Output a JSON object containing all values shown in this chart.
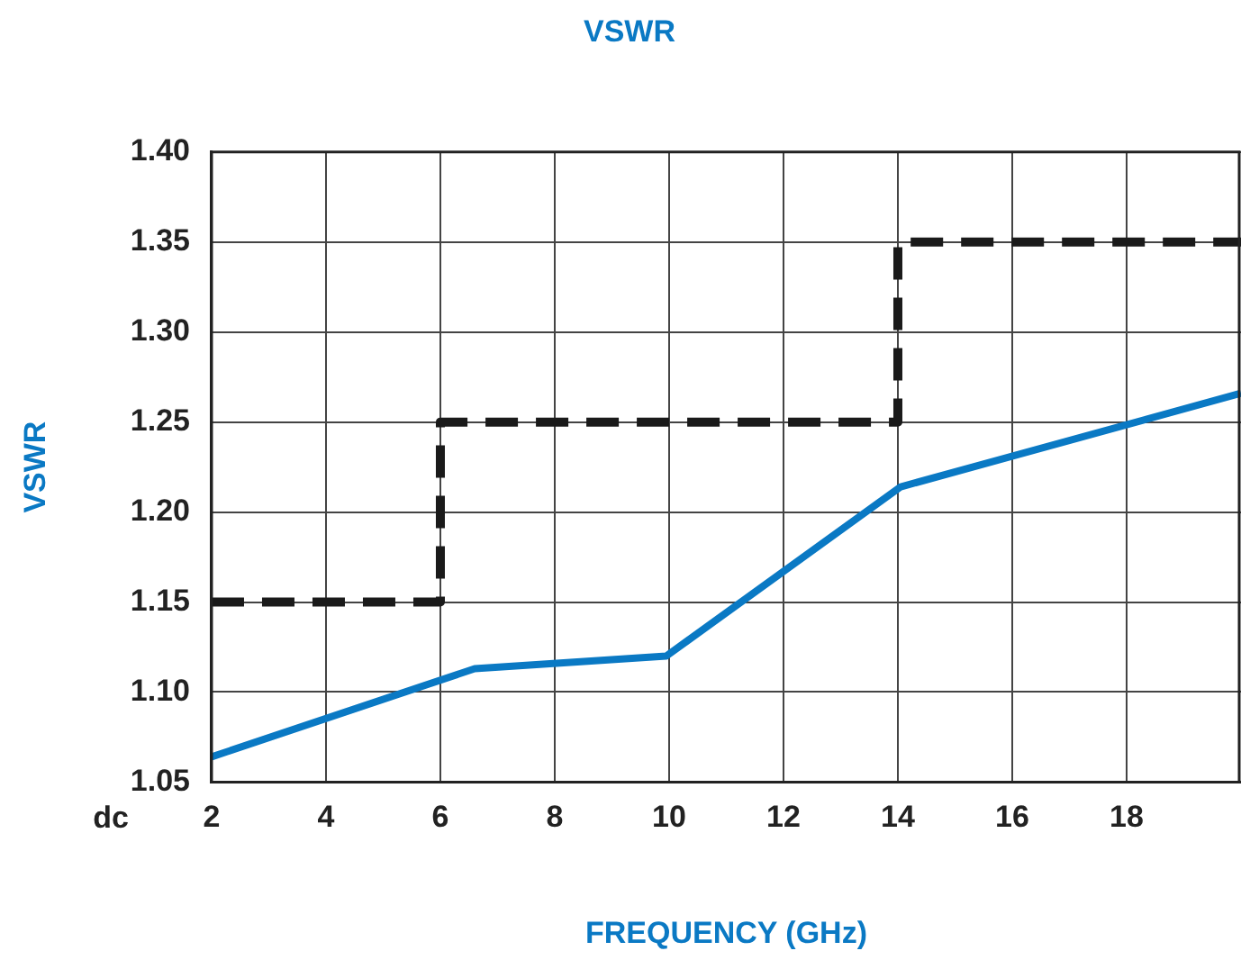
{
  "chart_data": {
    "type": "line",
    "title": "VSWR",
    "xlabel": "FREQUENCY (GHz)",
    "ylabel": "VSWR",
    "xlim": [
      2,
      20
    ],
    "xticks": [
      2,
      4,
      6,
      8,
      10,
      12,
      14,
      16,
      18
    ],
    "ylim": [
      1.05,
      1.4
    ],
    "yticks": [
      {
        "value": 1.05,
        "label": "1.05"
      },
      {
        "value": 1.1,
        "label": "1.10"
      },
      {
        "value": 1.15,
        "label": "1.15"
      },
      {
        "value": 1.2,
        "label": "1.20"
      },
      {
        "value": 1.25,
        "label": "1.25"
      },
      {
        "value": 1.3,
        "label": "1.30"
      },
      {
        "value": 1.35,
        "label": "1.35"
      },
      {
        "value": 1.4,
        "label": "1.40"
      }
    ],
    "grid": true,
    "legend": false,
    "marker": "none",
    "annotations": [
      "dc"
    ],
    "series": [
      {
        "color": "#0a79c4",
        "line_style": "solid",
        "x": [
          2,
          6.6,
          9.95,
          14.05,
          20
        ],
        "values": [
          1.064,
          1.113,
          1.12,
          1.214,
          1.266
        ]
      },
      {
        "type": "step",
        "color": "#1a1a1a",
        "line_style": "dashed",
        "x": [
          2,
          6,
          14,
          20
        ],
        "values": [
          1.15,
          1.25,
          1.35,
          1.35
        ]
      }
    ]
  }
}
